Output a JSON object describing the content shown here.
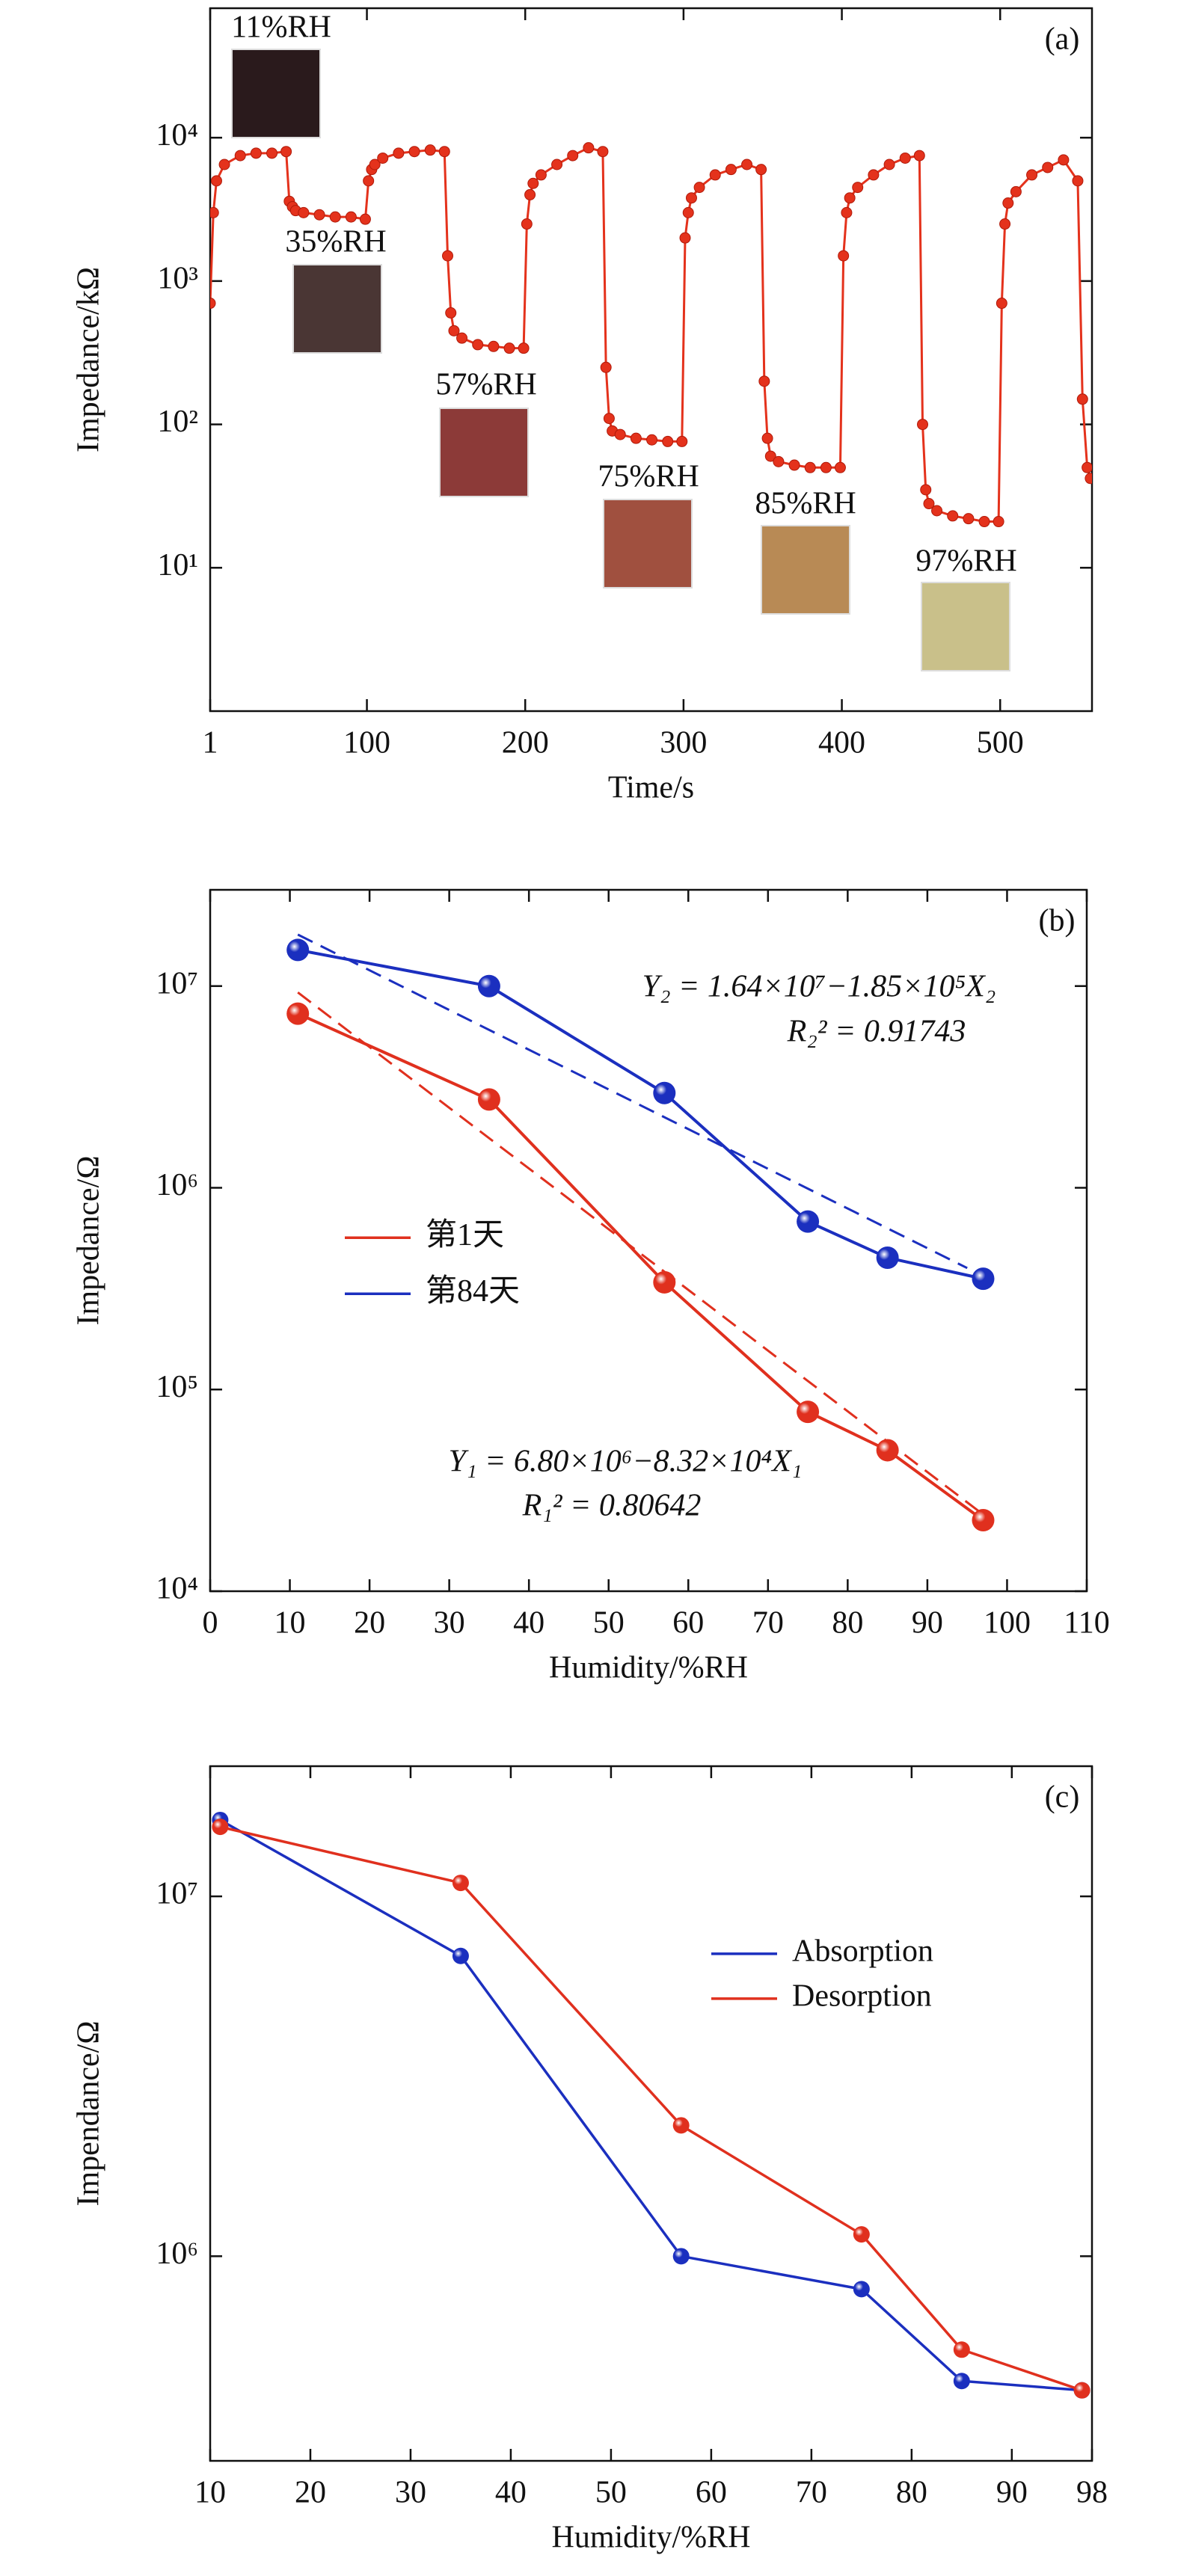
{
  "chart_data": [
    {
      "type": "line",
      "panel_label": "(a)",
      "xlabel": "Time/s",
      "ylabel": "Impedance/kΩ",
      "log_y": true,
      "xlim": [
        1,
        558
      ],
      "xticks": [
        1,
        100,
        200,
        300,
        400,
        500
      ],
      "ylim": [
        1,
        80000
      ],
      "yticks": [
        {
          "value": 10,
          "label": "10¹"
        },
        {
          "value": 100,
          "label": "10²"
        },
        {
          "value": 1000,
          "label": "10³"
        },
        {
          "value": 10000,
          "label": "10⁴"
        }
      ],
      "x": [
        1,
        3,
        5,
        10,
        20,
        30,
        40,
        49,
        51,
        53,
        55,
        60,
        70,
        80,
        90,
        99,
        101,
        103,
        105,
        110,
        120,
        130,
        140,
        149,
        151,
        153,
        155,
        160,
        170,
        180,
        190,
        199,
        201,
        203,
        205,
        210,
        220,
        230,
        240,
        249,
        251,
        253,
        255,
        260,
        270,
        280,
        290,
        299,
        301,
        303,
        305,
        310,
        320,
        330,
        340,
        349,
        351,
        353,
        355,
        360,
        370,
        380,
        390,
        399,
        401,
        403,
        405,
        410,
        420,
        430,
        440,
        449,
        451,
        453,
        455,
        460,
        470,
        480,
        490,
        499,
        501,
        503,
        505,
        510,
        520,
        530,
        540,
        549,
        552,
        555,
        557
      ],
      "series": [
        {
          "color": "#e4321c",
          "values": [
            700,
            3000,
            5000,
            6500,
            7500,
            7800,
            7800,
            8000,
            3600,
            3300,
            3100,
            3000,
            2900,
            2800,
            2800,
            2700,
            5000,
            6000,
            6500,
            7200,
            7800,
            8000,
            8200,
            8000,
            1500,
            600,
            450,
            400,
            360,
            350,
            340,
            340,
            2500,
            4000,
            4800,
            5500,
            6500,
            7500,
            8500,
            8000,
            250,
            110,
            90,
            85,
            80,
            78,
            76,
            76,
            2000,
            3000,
            3800,
            4500,
            5500,
            6000,
            6500,
            6000,
            200,
            80,
            60,
            55,
            52,
            50,
            50,
            50,
            1500,
            3000,
            3800,
            4500,
            5500,
            6500,
            7200,
            7500,
            100,
            35,
            28,
            25,
            23,
            22,
            21,
            21,
            700,
            2500,
            3500,
            4200,
            5500,
            6200,
            7000,
            5000,
            150,
            50,
            42
          ]
        }
      ],
      "annotations": [
        "11%RH",
        "35%RH",
        "57%RH",
        "75%RH",
        "85%RH",
        "97%RH"
      ]
    },
    {
      "type": "line",
      "panel_label": "(b)",
      "xlabel": "Humidity/%RH",
      "ylabel": "Impedance/Ω",
      "log_y": true,
      "xlim": [
        0,
        110
      ],
      "xticks": [
        0,
        10,
        20,
        30,
        40,
        50,
        60,
        70,
        80,
        90,
        100,
        110
      ],
      "ylim": [
        10000,
        30000000
      ],
      "yticks": [
        {
          "value": 10000,
          "label": "10⁴"
        },
        {
          "value": 100000,
          "label": "10⁵"
        },
        {
          "value": 1000000,
          "label": "10⁶"
        },
        {
          "value": 10000000,
          "label": "10⁷"
        }
      ],
      "x": [
        11,
        35,
        57,
        75,
        85,
        97
      ],
      "series": [
        {
          "name": "第1天",
          "color": "#e0301e",
          "values": [
            7300000,
            2740000,
            340000,
            77500,
            50000,
            22500
          ]
        },
        {
          "name": "第84天",
          "color": "#1b2fbf",
          "values": [
            15100000,
            10000000,
            2950000,
            680000,
            450000,
            354000
          ]
        }
      ],
      "fits": [
        {
          "color": "#e0301e",
          "x": [
            11,
            97
          ],
          "values": [
            9300000,
            24000
          ]
        },
        {
          "color": "#1b2fbf",
          "x": [
            11,
            95
          ],
          "values": [
            18000000,
            400000
          ]
        }
      ],
      "legend": "center left",
      "annotations": [
        {
          "text": "Y₂ = 1.64×10⁷−1.85×10⁵X₂",
          "color": "#1b2fbf"
        },
        {
          "text": "R₂² = 0.91743",
          "color": "#1b2fbf"
        },
        {
          "text": "Y₁ = 6.80×10⁶−8.32×10⁴X₁",
          "color": "#e0301e"
        },
        {
          "text": "R₁² = 0.80642",
          "color": "#e0301e"
        }
      ]
    },
    {
      "type": "line",
      "panel_label": "(c)",
      "xlabel": "Humidity/%RH",
      "ylabel": "Impendance/Ω",
      "log_y": true,
      "xlim": [
        10,
        98
      ],
      "xticks": [
        10,
        20,
        30,
        40,
        50,
        60,
        70,
        80,
        90,
        98
      ],
      "ylim": [
        270000,
        23000000
      ],
      "yticks": [
        {
          "value": 1000000,
          "label": "10⁶"
        },
        {
          "value": 10000000,
          "label": "10⁷"
        }
      ],
      "x": [
        11,
        35,
        57,
        75,
        85,
        97
      ],
      "series": [
        {
          "name": "Absorption",
          "color": "#1b2fbf",
          "values": [
            16300000,
            6830000,
            1000000,
            810000,
            450000,
            424000
          ]
        },
        {
          "name": "Desorption",
          "color": "#e0301e",
          "values": [
            15600000,
            10900000,
            2310000,
            1150000,
            550000,
            424000
          ]
        }
      ],
      "legend": "upper right"
    }
  ]
}
